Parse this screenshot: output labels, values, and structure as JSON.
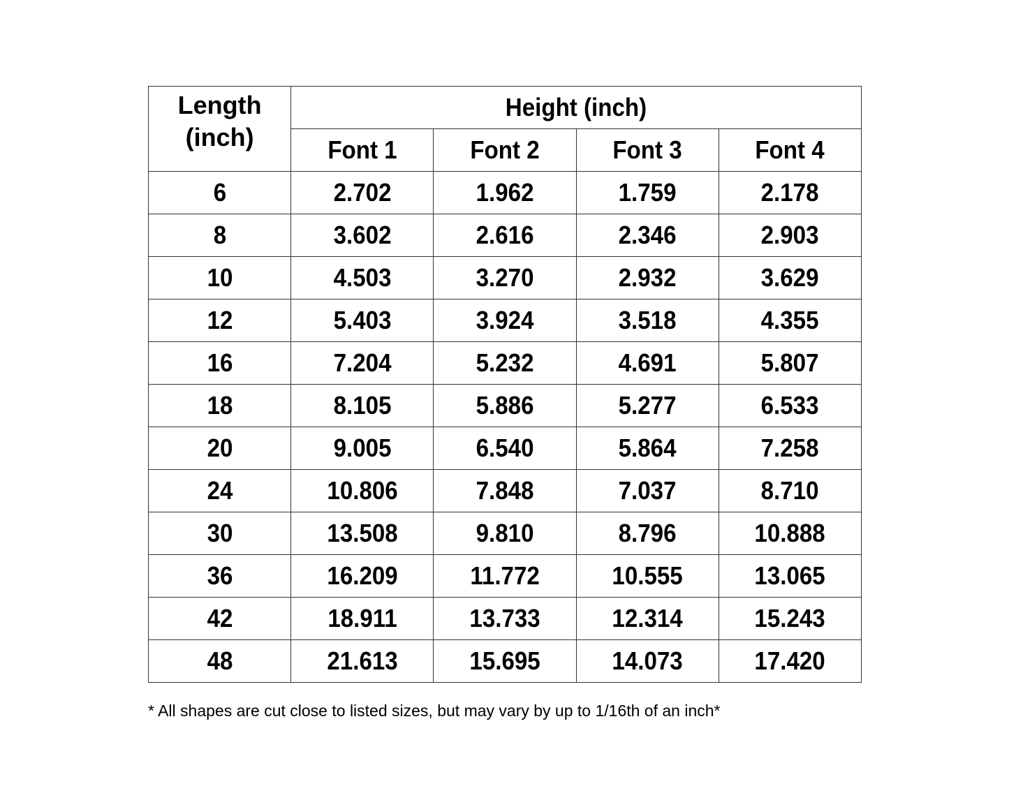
{
  "table": {
    "length_header_line1": "Length",
    "length_header_line2": "(inch)",
    "height_header": "Height (inch)",
    "font_headers": [
      "Font 1",
      "Font 2",
      "Font 3",
      "Font 4"
    ],
    "rows": [
      {
        "length": "6",
        "values": [
          "2.702",
          "1.962",
          "1.759",
          "2.178"
        ]
      },
      {
        "length": "8",
        "values": [
          "3.602",
          "2.616",
          "2.346",
          "2.903"
        ]
      },
      {
        "length": "10",
        "values": [
          "4.503",
          "3.270",
          "2.932",
          "3.629"
        ]
      },
      {
        "length": "12",
        "values": [
          "5.403",
          "3.924",
          "3.518",
          "4.355"
        ]
      },
      {
        "length": "16",
        "values": [
          "7.204",
          "5.232",
          "4.691",
          "5.807"
        ]
      },
      {
        "length": "18",
        "values": [
          "8.105",
          "5.886",
          "5.277",
          "6.533"
        ]
      },
      {
        "length": "20",
        "values": [
          "9.005",
          "6.540",
          "5.864",
          "7.258"
        ]
      },
      {
        "length": "24",
        "values": [
          "10.806",
          "7.848",
          "7.037",
          "8.710"
        ]
      },
      {
        "length": "30",
        "values": [
          "13.508",
          "9.810",
          "8.796",
          "10.888"
        ]
      },
      {
        "length": "36",
        "values": [
          "16.209",
          "11.772",
          "10.555",
          "13.065"
        ]
      },
      {
        "length": "42",
        "values": [
          "18.911",
          "13.733",
          "12.314",
          "15.243"
        ]
      },
      {
        "length": "48",
        "values": [
          "21.613",
          "15.695",
          "14.073",
          "17.420"
        ]
      }
    ]
  },
  "footnote": "* All shapes are cut close to listed sizes, but may vary by up to 1/16th of an inch*"
}
